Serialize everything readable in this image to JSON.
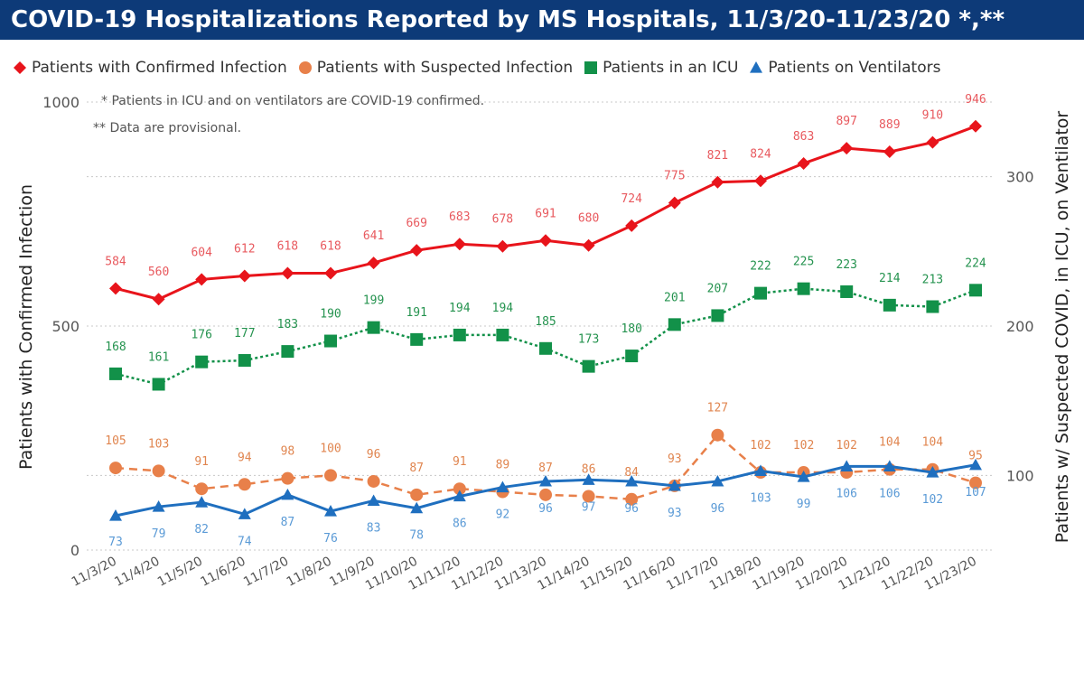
{
  "title": "COVID-19 Hospitalizations Reported by MS Hospitals, 11/3/20-11/23/20 *,**",
  "notes": [
    "* Patients in ICU and on ventilators are COVID-19 confirmed.",
    "** Data are provisional."
  ],
  "colors": {
    "title_bg": "#0d3a78",
    "title_text": "#ffffff",
    "confirmed": "#e8141b",
    "suspected": "#e8804a",
    "icu": "#129149",
    "ventilator": "#1f6fbf",
    "grid": "#c8c8c8"
  },
  "legend": [
    {
      "label": "Patients with Confirmed Infection",
      "marker": "diamond",
      "color": "#e8141b"
    },
    {
      "label": "Patients with Suspected Infection",
      "marker": "circle",
      "color": "#e8804a"
    },
    {
      "label": "Patients in an ICU",
      "marker": "square",
      "color": "#129149"
    },
    {
      "label": "Patients on Ventilators",
      "marker": "triangle",
      "color": "#1f6fbf"
    }
  ],
  "chart_data": {
    "type": "line",
    "categories": [
      "11/3/20",
      "11/4/20",
      "11/5/20",
      "11/6/20",
      "11/7/20",
      "11/8/20",
      "11/9/20",
      "11/10/20",
      "11/11/20",
      "11/12/20",
      "11/13/20",
      "11/14/20",
      "11/15/20",
      "11/16/20",
      "11/17/20",
      "11/18/20",
      "11/19/20",
      "11/20/20",
      "11/21/20",
      "11/22/20",
      "11/23/20"
    ],
    "ylabel_left": "Patients with Confirmed Infection",
    "ylabel_right": "Patients w/ Suspected COVID, in ICU, on Ventilator",
    "ylim_left": [
      0,
      1000
    ],
    "ylim_right": [
      50,
      350
    ],
    "yticks_left": [
      0,
      500,
      1000
    ],
    "yticks_right": [
      100,
      200,
      300
    ],
    "grid": true,
    "legend_position": "top-left",
    "series": [
      {
        "name": "Patients with Confirmed Infection",
        "axis": "left",
        "marker": "diamond",
        "line": "solid",
        "color": "#e8141b",
        "values": [
          584,
          560,
          604,
          612,
          618,
          618,
          641,
          669,
          683,
          678,
          691,
          680,
          724,
          775,
          821,
          824,
          863,
          897,
          889,
          910,
          946
        ]
      },
      {
        "name": "Patients with Suspected Infection",
        "axis": "right",
        "marker": "circle",
        "line": "dashed",
        "color": "#e8804a",
        "values": [
          105,
          103,
          91,
          94,
          98,
          100,
          96,
          87,
          91,
          89,
          87,
          86,
          84,
          93,
          127,
          102,
          102,
          102,
          104,
          104,
          95
        ]
      },
      {
        "name": "Patients in an ICU",
        "axis": "right",
        "marker": "square",
        "line": "dotted",
        "color": "#129149",
        "values": [
          168,
          161,
          176,
          177,
          183,
          190,
          199,
          191,
          194,
          194,
          185,
          173,
          180,
          201,
          207,
          222,
          225,
          223,
          214,
          213,
          224
        ]
      },
      {
        "name": "Patients on Ventilators",
        "axis": "right",
        "marker": "triangle",
        "line": "solid",
        "color": "#1f6fbf",
        "values": [
          73,
          79,
          82,
          74,
          87,
          76,
          83,
          78,
          86,
          92,
          96,
          97,
          96,
          93,
          96,
          103,
          99,
          106,
          106,
          102,
          107
        ]
      }
    ]
  }
}
